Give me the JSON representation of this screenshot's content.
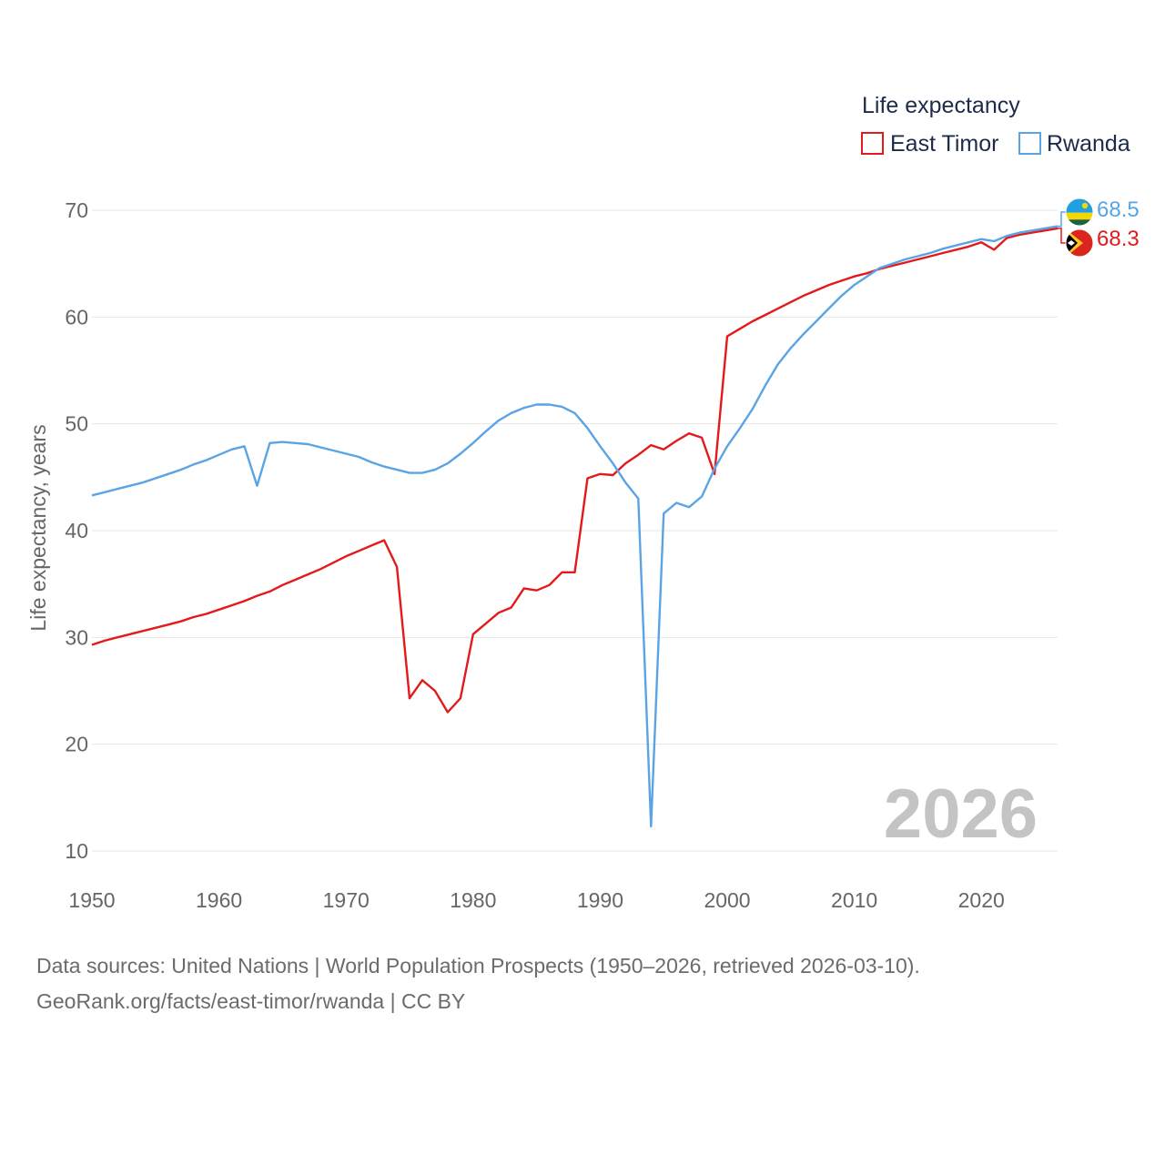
{
  "chart_data": {
    "type": "line",
    "title": "",
    "xlabel": "",
    "ylabel": "Life expectancy, years",
    "xlim": [
      1950,
      2026
    ],
    "ylim": [
      10,
      70
    ],
    "x_ticks": [
      1950,
      1960,
      1970,
      1980,
      1990,
      2000,
      2010,
      2020
    ],
    "y_ticks": [
      10,
      20,
      30,
      40,
      50,
      60,
      70
    ],
    "grid": "horizontal",
    "legend_title": "Life expectancy",
    "legend_position": "top-right",
    "year_watermark": "2026",
    "x": [
      1950,
      1951,
      1952,
      1953,
      1954,
      1955,
      1956,
      1957,
      1958,
      1959,
      1960,
      1961,
      1962,
      1963,
      1964,
      1965,
      1966,
      1967,
      1968,
      1969,
      1970,
      1971,
      1972,
      1973,
      1974,
      1975,
      1976,
      1977,
      1978,
      1979,
      1980,
      1981,
      1982,
      1983,
      1984,
      1985,
      1986,
      1987,
      1988,
      1989,
      1990,
      1991,
      1992,
      1993,
      1994,
      1995,
      1996,
      1997,
      1998,
      1999,
      2000,
      2001,
      2002,
      2003,
      2004,
      2005,
      2006,
      2007,
      2008,
      2009,
      2010,
      2011,
      2012,
      2013,
      2014,
      2015,
      2016,
      2017,
      2018,
      2019,
      2020,
      2021,
      2022,
      2023,
      2024,
      2025,
      2026
    ],
    "series": [
      {
        "name": "East Timor",
        "color": "#e31a1c",
        "end_label": "68.3",
        "flag": "east-timor-flag-icon",
        "values": [
          29.3,
          29.7,
          30.0,
          30.3,
          30.6,
          30.9,
          31.2,
          31.5,
          31.9,
          32.2,
          32.6,
          33.0,
          33.4,
          33.9,
          34.3,
          34.9,
          35.4,
          35.9,
          36.4,
          37.0,
          37.6,
          38.1,
          38.6,
          39.1,
          36.6,
          24.3,
          26.0,
          25.0,
          23.0,
          24.3,
          30.3,
          31.3,
          32.3,
          32.8,
          34.6,
          34.4,
          34.9,
          36.1,
          36.1,
          44.9,
          45.3,
          45.2,
          46.3,
          47.1,
          48.0,
          47.6,
          48.4,
          49.1,
          48.7,
          45.3,
          58.2,
          58.9,
          59.6,
          60.2,
          60.8,
          61.4,
          62.0,
          62.5,
          63.0,
          63.4,
          63.8,
          64.1,
          64.5,
          64.8,
          65.1,
          65.4,
          65.7,
          66.0,
          66.3,
          66.6,
          67.0,
          66.3,
          67.4,
          67.7,
          67.9,
          68.1,
          68.3
        ]
      },
      {
        "name": "Rwanda",
        "color": "#5aa4e6",
        "end_label": "68.5",
        "flag": "rwanda-flag-icon",
        "values": [
          43.3,
          43.6,
          43.9,
          44.2,
          44.5,
          44.9,
          45.3,
          45.7,
          46.2,
          46.6,
          47.1,
          47.6,
          47.9,
          44.2,
          48.2,
          48.3,
          48.2,
          48.1,
          47.8,
          47.5,
          47.2,
          46.9,
          46.4,
          46.0,
          45.7,
          45.4,
          45.4,
          45.7,
          46.3,
          47.2,
          48.2,
          49.3,
          50.3,
          51.0,
          51.5,
          51.8,
          51.8,
          51.6,
          51.0,
          49.6,
          47.9,
          46.3,
          44.5,
          43.0,
          12.3,
          41.6,
          42.6,
          42.2,
          43.2,
          45.8,
          47.9,
          49.6,
          51.4,
          53.6,
          55.6,
          57.1,
          58.4,
          59.6,
          60.8,
          62.0,
          63.0,
          63.8,
          64.6,
          65.0,
          65.4,
          65.7,
          66.0,
          66.4,
          66.7,
          67.0,
          67.3,
          67.1,
          67.6,
          67.9,
          68.1,
          68.3,
          68.5
        ]
      }
    ]
  },
  "source": {
    "line1": "Data sources: United Nations | World Population Prospects (1950–2026, retrieved 2026-03-10).",
    "line2": "GeoRank.org/facts/east-timor/rwanda | CC BY"
  }
}
